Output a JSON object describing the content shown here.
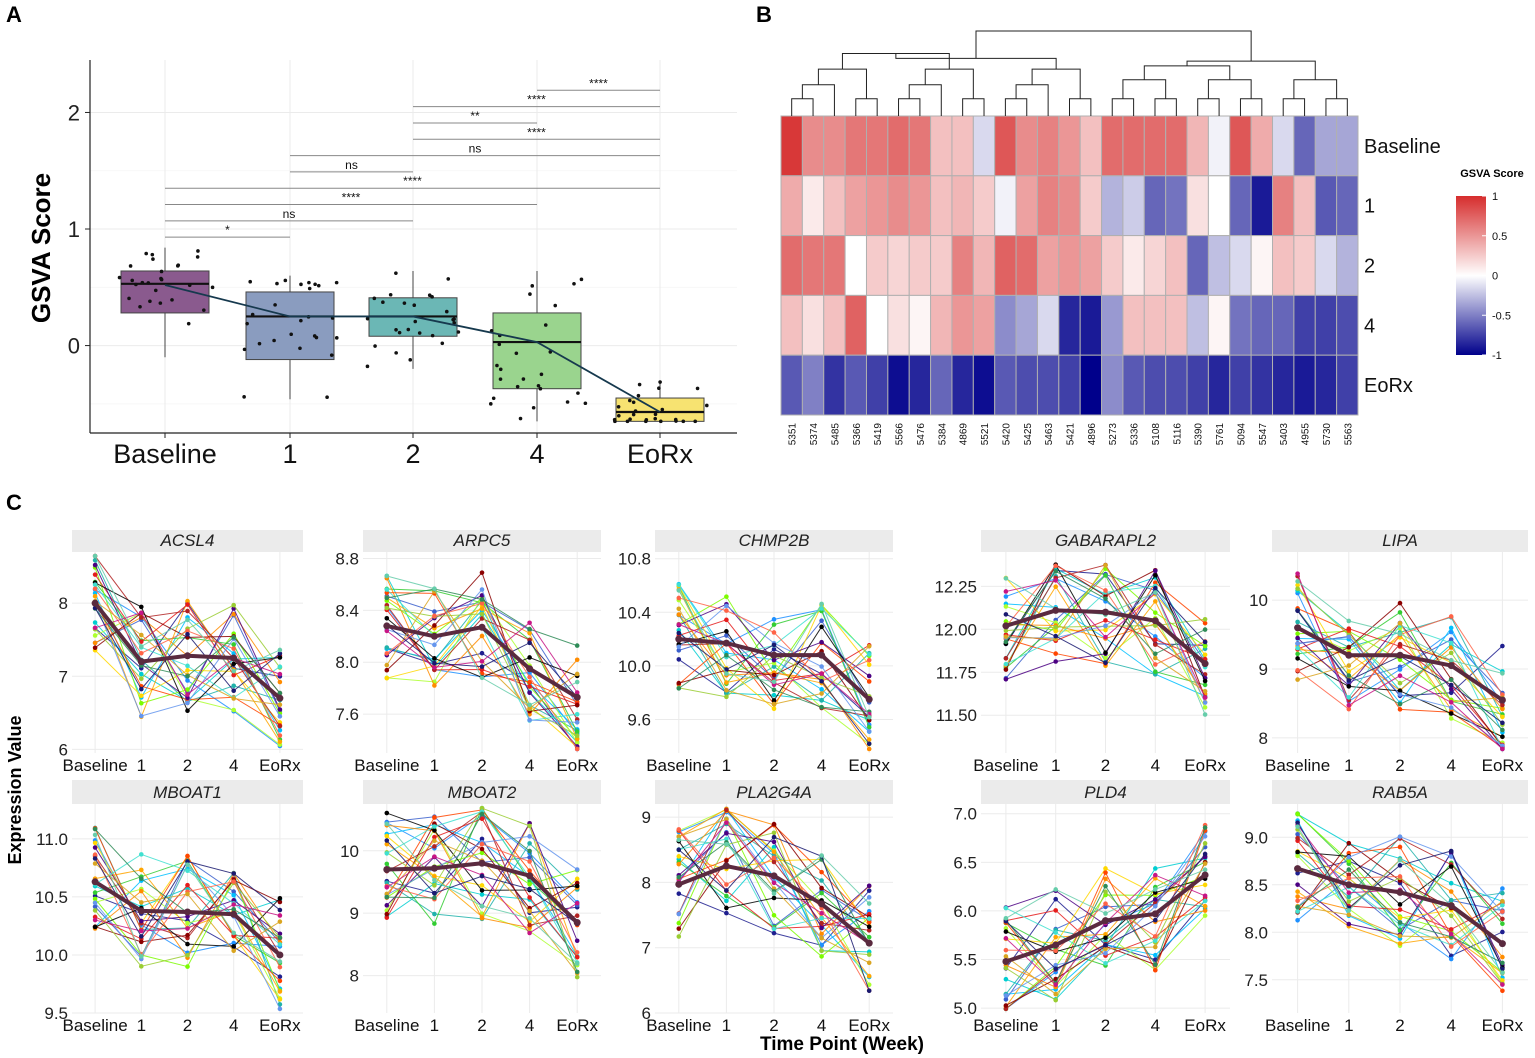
{
  "panels": {
    "a": "A",
    "b": "B",
    "c": "C"
  },
  "colors": {
    "box_fills": [
      "#8a5a8e",
      "#8a9cbf",
      "#6bb7b5",
      "#9ad48e",
      "#f7e371"
    ],
    "trend_line": "#16394e",
    "heat_high": "#d62d2d",
    "heat_mid": "#ffffff",
    "heat_low": "#00008b",
    "mean_line": "#5a2a3f",
    "strip_bg": "#ebebeb",
    "grid": "#ebebeb"
  },
  "chart_data": [
    {
      "id": "A",
      "type": "box",
      "title": "",
      "ylabel": "GSVA Score",
      "xlabel": "",
      "categories": [
        "Baseline",
        "1",
        "2",
        "4",
        "EoRx"
      ],
      "ylim": [
        -0.75,
        2.45
      ],
      "yticks": [
        0,
        1,
        2
      ],
      "boxes": [
        {
          "q1": 0.28,
          "median": 0.53,
          "q3": 0.64,
          "whisker_low": -0.1,
          "whisker_high": 0.84
        },
        {
          "q1": -0.12,
          "median": 0.25,
          "q3": 0.46,
          "whisker_low": -0.46,
          "whisker_high": 0.6
        },
        {
          "q1": 0.08,
          "median": 0.25,
          "q3": 0.41,
          "whisker_low": -0.2,
          "whisker_high": 0.64
        },
        {
          "q1": -0.37,
          "median": 0.03,
          "q3": 0.28,
          "whisker_low": -0.65,
          "whisker_high": 0.64
        },
        {
          "q1": -0.65,
          "median": -0.57,
          "q3": -0.45,
          "whisker_low": -0.65,
          "whisker_high": -0.3
        }
      ],
      "mean_line": [
        0.52,
        0.25,
        0.25,
        0.03,
        -0.57
      ],
      "comparisons": [
        {
          "from": 0,
          "to": 1,
          "label": "*",
          "y": 0.93
        },
        {
          "from": 0,
          "to": 2,
          "label": "ns",
          "y": 1.07
        },
        {
          "from": 0,
          "to": 3,
          "label": "****",
          "y": 1.21
        },
        {
          "from": 0,
          "to": 4,
          "label": "****",
          "y": 1.35
        },
        {
          "from": 1,
          "to": 2,
          "label": "ns",
          "y": 1.49
        },
        {
          "from": 1,
          "to": 4,
          "label": "ns",
          "y": 1.63
        },
        {
          "from": 2,
          "to": 4,
          "label": "****",
          "y": 1.77
        },
        {
          "from": 2,
          "to": 3,
          "label": "**",
          "y": 1.91
        },
        {
          "from": 2,
          "to": 4,
          "label": "****",
          "y": 2.05
        },
        {
          "from": 3,
          "to": 4,
          "label": "****",
          "y": 2.19
        }
      ]
    },
    {
      "id": "B",
      "type": "heatmap",
      "legend_title": "GSVA Score",
      "legend_ticks": [
        "1",
        "0.5",
        "0",
        "-0.5",
        "-1"
      ],
      "legend_values": [
        1,
        0.5,
        0,
        -0.5,
        -1
      ],
      "rows": [
        "Baseline",
        "1",
        "2",
        "4",
        "EoRx"
      ],
      "columns": [
        "5351",
        "5374",
        "5485",
        "5366",
        "5419",
        "5566",
        "5476",
        "5384",
        "4869",
        "5521",
        "5420",
        "5425",
        "5463",
        "5421",
        "4896",
        "5273",
        "5336",
        "5108",
        "5116",
        "5390",
        "5761",
        "5094",
        "5547",
        "5403",
        "4955",
        "5730",
        "5563"
      ],
      "values": [
        [
          0.95,
          0.55,
          0.55,
          0.65,
          0.65,
          0.7,
          0.65,
          0.3,
          0.3,
          -0.15,
          0.8,
          0.55,
          0.6,
          0.5,
          0.3,
          0.7,
          0.7,
          0.7,
          0.7,
          0.35,
          -0.05,
          0.8,
          0.4,
          -0.15,
          -0.6,
          -0.35,
          -0.35
        ],
        [
          0.4,
          0.1,
          0.3,
          0.45,
          0.5,
          0.55,
          0.5,
          0.3,
          0.35,
          0.25,
          -0.05,
          0.45,
          0.6,
          0.55,
          0.25,
          -0.3,
          -0.2,
          -0.6,
          -0.55,
          0.15,
          0.0,
          -0.6,
          -0.9,
          0.6,
          0.3,
          -0.65,
          -0.6
        ],
        [
          0.7,
          0.65,
          0.65,
          0.0,
          0.25,
          0.2,
          0.25,
          0.25,
          0.6,
          0.35,
          0.75,
          0.7,
          0.45,
          0.5,
          0.45,
          0.25,
          0.1,
          0.2,
          0.3,
          -0.6,
          -0.25,
          -0.15,
          0.05,
          0.3,
          0.25,
          -0.15,
          -0.3
        ],
        [
          0.3,
          0.15,
          0.3,
          0.75,
          0.0,
          0.15,
          0.05,
          0.35,
          0.5,
          0.45,
          -0.45,
          -0.35,
          -0.15,
          -0.85,
          -0.9,
          -0.4,
          0.3,
          0.3,
          0.3,
          -0.25,
          0.05,
          -0.55,
          -0.6,
          -0.6,
          -0.75,
          -0.75,
          -0.7
        ],
        [
          -0.65,
          -0.5,
          -0.8,
          -0.65,
          -0.75,
          -0.95,
          -0.85,
          -0.6,
          -0.85,
          -0.95,
          -0.65,
          -0.7,
          -0.7,
          -0.75,
          -1.0,
          -0.45,
          -0.65,
          -0.7,
          -0.7,
          -0.75,
          -0.85,
          -0.75,
          -0.8,
          -0.85,
          -0.9,
          -0.85,
          -0.75
        ]
      ]
    },
    {
      "id": "C",
      "type": "line",
      "xlabel": "Time Point (Week)",
      "ylabel": "Expression Value",
      "categories": [
        "Baseline",
        "1",
        "2",
        "4",
        "EoRx"
      ],
      "panels": [
        {
          "gene": "ACSL4",
          "ylim": [
            5.95,
            8.7
          ],
          "yticks": [
            6,
            7,
            8
          ],
          "tick_labels": [
            "6",
            "7",
            "8"
          ],
          "mean": [
            8.0,
            7.2,
            7.28,
            7.25,
            6.7
          ]
        },
        {
          "gene": "ARPC5",
          "ylim": [
            7.3,
            8.85
          ],
          "yticks": [
            7.6,
            8.0,
            8.4,
            8.8
          ],
          "tick_labels": [
            "7.6",
            "8.0",
            "8.4",
            "8.8"
          ],
          "mean": [
            8.28,
            8.2,
            8.27,
            7.95,
            7.73
          ]
        },
        {
          "gene": "CHMP2B",
          "ylim": [
            9.35,
            10.85
          ],
          "yticks": [
            9.6,
            10.0,
            10.4,
            10.8
          ],
          "tick_labels": [
            "9.6",
            "10.0",
            "10.4",
            "10.8"
          ],
          "mean": [
            10.2,
            10.17,
            10.08,
            10.08,
            9.75
          ]
        },
        {
          "gene": "GABARAPL2",
          "ylim": [
            11.28,
            12.45
          ],
          "yticks": [
            11.5,
            11.75,
            12.0,
            12.25
          ],
          "tick_labels": [
            "11.50",
            "11.75",
            "12.00",
            "12.25"
          ],
          "mean": [
            12.02,
            12.11,
            12.1,
            12.05,
            11.8
          ]
        },
        {
          "gene": "LIPA",
          "ylim": [
            7.78,
            10.7
          ],
          "yticks": [
            8,
            9,
            10
          ],
          "tick_labels": [
            "8",
            "9",
            "10"
          ],
          "mean": [
            9.6,
            9.2,
            9.2,
            9.05,
            8.55
          ]
        },
        {
          "gene": "MBOAT1",
          "ylim": [
            9.5,
            11.3
          ],
          "yticks": [
            9.5,
            10.0,
            10.5,
            11.0
          ],
          "tick_labels": [
            "9.5",
            "10.0",
            "10.5",
            "11.0"
          ],
          "mean": [
            10.63,
            10.38,
            10.37,
            10.35,
            10.0
          ]
        },
        {
          "gene": "MBOAT2",
          "ylim": [
            7.4,
            10.75
          ],
          "yticks": [
            8,
            9,
            10
          ],
          "tick_labels": [
            "8",
            "9",
            "10"
          ],
          "mean": [
            9.7,
            9.72,
            9.8,
            9.6,
            8.85
          ]
        },
        {
          "gene": "PLA2G4A",
          "ylim": [
            6.0,
            9.2
          ],
          "yticks": [
            6,
            7,
            8,
            9
          ],
          "tick_labels": [
            "6",
            "7",
            "8",
            "9"
          ],
          "mean": [
            7.97,
            8.25,
            8.1,
            7.67,
            7.07
          ]
        },
        {
          "gene": "PLD4",
          "ylim": [
            4.95,
            7.1
          ],
          "yticks": [
            5.0,
            5.5,
            6.0,
            6.5,
            7.0
          ],
          "tick_labels": [
            "5.0",
            "5.5",
            "6.0",
            "6.5",
            "7.0"
          ],
          "mean": [
            5.48,
            5.65,
            5.9,
            5.97,
            6.37
          ]
        },
        {
          "gene": "RAB5A",
          "ylim": [
            7.15,
            9.35
          ],
          "yticks": [
            7.5,
            8.0,
            8.5,
            9.0
          ],
          "tick_labels": [
            "7.5",
            "8.0",
            "8.5",
            "9.0"
          ],
          "mean": [
            8.67,
            8.5,
            8.42,
            8.28,
            7.88
          ]
        }
      ]
    }
  ]
}
